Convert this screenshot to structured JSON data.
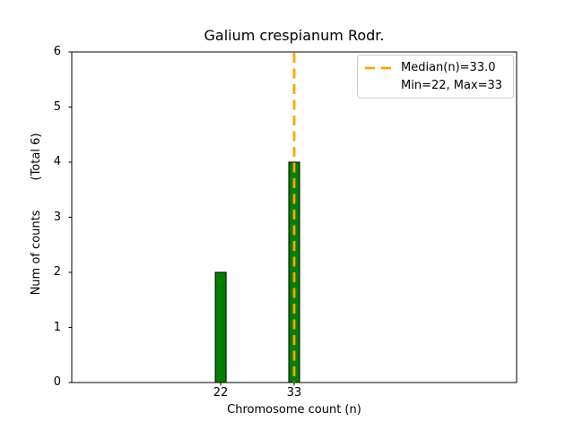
{
  "chart_data": {
    "type": "bar",
    "title": "Galium crespianum Rodr.",
    "xlabel": "Chromosome count (n)",
    "ylabel": "Num of counts        (Total 6)",
    "categories": [
      22,
      33
    ],
    "values": [
      2,
      4
    ],
    "total_counts": 6,
    "median": 33.0,
    "min": 22,
    "max": 33,
    "xticks": [
      22,
      33
    ],
    "yticks": [
      0,
      1,
      2,
      3,
      4,
      5,
      6
    ],
    "xlim": [
      -0.3,
      66.3
    ],
    "ylim": [
      0,
      6
    ],
    "grid": false,
    "background_color": "#FFFFFF",
    "bar_color": "#008000",
    "bar_edge_color": "#000000",
    "median_line_color": "#FFA500",
    "median_line_style": "dashed",
    "legend": {
      "position": "upper right",
      "entries": [
        {
          "label": "Median(n)=33.0",
          "handle": "orange-dashed-line"
        },
        {
          "label": "Min=22, Max=33",
          "handle": "none"
        }
      ]
    }
  }
}
